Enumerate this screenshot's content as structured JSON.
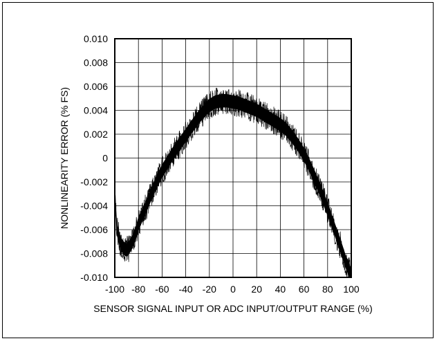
{
  "chart_data": {
    "type": "line",
    "title": "",
    "xlabel": "SENSOR SIGNAL INPUT OR ADC INPUT/OUTPUT RANGE (%)",
    "ylabel": "NONLINEARITY ERROR (% FS)",
    "xlim": [
      -100,
      100
    ],
    "ylim": [
      -0.01,
      0.01
    ],
    "x_ticks": [
      -100,
      -80,
      -60,
      -40,
      -20,
      0,
      20,
      40,
      60,
      80,
      100
    ],
    "x_tick_labels": [
      "-100",
      "-80",
      "-60",
      "-40",
      "-20",
      "0",
      "20",
      "40",
      "60",
      "80",
      "100"
    ],
    "y_ticks": [
      0.01,
      0.008,
      0.006,
      0.004,
      0.002,
      0,
      -0.002,
      -0.004,
      -0.006,
      -0.008,
      -0.01
    ],
    "y_tick_labels": [
      "0.010",
      "0.008",
      "0.006",
      "0.004",
      "0.002",
      "0",
      "-0.002",
      "-0.004",
      "-0.006",
      "-0.008",
      "-0.010"
    ],
    "grid": true,
    "series": [
      {
        "color": "#000000",
        "style": "noisy band",
        "x": [
          -100,
          -98,
          -95,
          -92,
          -90,
          -88,
          -85,
          -82,
          -80,
          -75,
          -70,
          -65,
          -60,
          -55,
          -50,
          -45,
          -40,
          -35,
          -30,
          -25,
          -20,
          -15,
          -10,
          -5,
          0,
          5,
          10,
          15,
          20,
          25,
          30,
          35,
          40,
          45,
          50,
          55,
          60,
          65,
          70,
          75,
          80,
          85,
          90,
          95,
          100
        ],
        "y": [
          -0.0035,
          -0.006,
          -0.0072,
          -0.0076,
          -0.0077,
          -0.0075,
          -0.007,
          -0.0062,
          -0.0055,
          -0.0044,
          -0.0032,
          -0.0021,
          -0.0011,
          -0.0003,
          0.0005,
          0.0012,
          0.0019,
          0.0026,
          0.0033,
          0.0039,
          0.0044,
          0.0047,
          0.0048,
          0.0048,
          0.0047,
          0.0046,
          0.0044,
          0.0042,
          0.004,
          0.0037,
          0.0034,
          0.0031,
          0.0028,
          0.0024,
          0.0018,
          0.0011,
          0.0003,
          -0.0007,
          -0.0018,
          -0.003,
          -0.0043,
          -0.0057,
          -0.0071,
          -0.0086,
          -0.0098
        ],
        "band_halfwidth": 0.0007
      }
    ]
  }
}
